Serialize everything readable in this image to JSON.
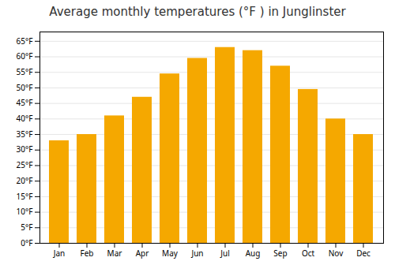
{
  "chart_data": {
    "type": "bar",
    "title": "Average monthly temperatures (°F ) in Junglinster",
    "categories": [
      "Jan",
      "Feb",
      "Mar",
      "Apr",
      "May",
      "Jun",
      "Jul",
      "Aug",
      "Sep",
      "Oct",
      "Nov",
      "Dec"
    ],
    "values": [
      33,
      35,
      41,
      47,
      54.5,
      59.5,
      63,
      62,
      57,
      49.5,
      40,
      35
    ],
    "color": "#F5A800",
    "ylim": [
      0,
      68
    ],
    "yticks": [
      {
        "value": 0,
        "label": "0°F"
      },
      {
        "value": 5,
        "label": "5°F"
      },
      {
        "value": 10,
        "label": "10°F"
      },
      {
        "value": 15,
        "label": "15°F"
      },
      {
        "value": 20,
        "label": "20°F"
      },
      {
        "value": 25,
        "label": "25°F"
      },
      {
        "value": 30,
        "label": "30°F"
      },
      {
        "value": 35,
        "label": "35°F"
      },
      {
        "value": 40,
        "label": "40°F"
      },
      {
        "value": 45,
        "label": "45°F"
      },
      {
        "value": 50,
        "label": "50°F"
      },
      {
        "value": 55,
        "label": "55°F"
      },
      {
        "value": 60,
        "label": "60°F"
      },
      {
        "value": 65,
        "label": "65°F"
      }
    ],
    "grid": true
  }
}
